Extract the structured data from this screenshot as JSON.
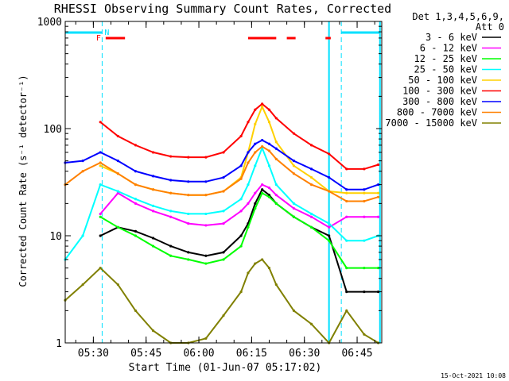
{
  "chart_data": {
    "type": "line",
    "title": "RHESSI Observing Summary Count Rates, Corrected",
    "xlabel": "Start Time (01-Jun-07 05:17:02)",
    "ylabel": "Corrected Count Rate (s⁻¹ detector⁻¹)",
    "yscale": "log",
    "ylim": [
      1,
      1000
    ],
    "xlim_minutes": [
      5.0,
      95.0
    ],
    "x_unit": "minutes after 05:17:02",
    "x_ticks": [
      {
        "label": "05:30",
        "minute": 13
      },
      {
        "label": "05:45",
        "minute": 28
      },
      {
        "label": "06:00",
        "minute": 43
      },
      {
        "label": "06:15",
        "minute": 58
      },
      {
        "label": "06:30",
        "minute": 73
      },
      {
        "label": "06:45",
        "minute": 88
      }
    ],
    "y_ticks": [
      {
        "label": "1",
        "value": 1
      },
      {
        "label": "10",
        "value": 10
      },
      {
        "label": "100",
        "value": 100
      },
      {
        "label": "1000",
        "value": 1000
      }
    ],
    "legend_header": [
      "Det 1,3,4,5,6,9,",
      "Att 0"
    ],
    "legend_position": "right",
    "timestamp": "15-Oct-2021 10:08",
    "flags": [
      {
        "label": "N",
        "color": "#00e0ff"
      },
      {
        "label": "F",
        "color": "#ff0000"
      }
    ],
    "night_boundaries_minutes": [
      15.5,
      83.5
    ],
    "saa_boundaries_minutes": [
      80.0,
      94.5
    ],
    "night_bar_segments": [
      [
        5.0,
        15.5
      ],
      [
        83.5,
        94.5
      ]
    ],
    "flare_bar_segments": [
      [
        16.5,
        22.0
      ],
      [
        57.0,
        65.0
      ],
      [
        68.0,
        70.5
      ],
      [
        79.0,
        80.5
      ]
    ],
    "x": [
      5,
      10,
      15,
      20,
      25,
      30,
      35,
      40,
      45,
      50,
      55,
      57,
      59,
      61,
      63,
      65,
      70,
      75,
      80,
      85,
      90,
      94
    ],
    "series": [
      {
        "name": "3 - 6 keV",
        "color": "#000000",
        "values": [
          null,
          null,
          10,
          12,
          11,
          9.5,
          8.0,
          7.0,
          6.5,
          7.0,
          10,
          13,
          20,
          27,
          24,
          20,
          15,
          12,
          10,
          3.0,
          3.0,
          3.0
        ]
      },
      {
        "name": "6 - 12 keV",
        "color": "#ff00ff",
        "values": [
          null,
          null,
          16,
          25,
          20,
          17,
          15,
          13,
          12.5,
          13,
          17,
          20,
          25,
          30,
          28,
          24,
          18,
          15,
          12,
          15,
          15,
          15
        ]
      },
      {
        "name": "12 - 25 keV",
        "color": "#00ff00",
        "values": [
          null,
          null,
          15,
          12,
          10,
          8,
          6.5,
          6.0,
          5.5,
          6,
          8,
          12,
          18,
          25,
          23,
          20,
          15,
          12,
          9,
          5,
          5,
          5
        ]
      },
      {
        "name": "25 - 50 keV",
        "color": "#00ffff",
        "values": [
          6,
          10,
          30,
          26,
          22,
          19,
          17,
          16.0,
          16,
          17,
          22,
          30,
          45,
          66,
          45,
          30,
          20,
          16,
          13,
          9,
          9,
          10
        ]
      },
      {
        "name": "50 - 100 keV",
        "color": "#ffd000",
        "values": [
          null,
          null,
          45,
          38,
          30,
          27,
          25,
          24,
          24,
          26,
          35,
          60,
          110,
          160,
          115,
          75,
          45,
          35,
          26,
          25,
          25,
          25
        ]
      },
      {
        "name": "100 - 300 keV",
        "color": "#ff0000",
        "values": [
          null,
          null,
          115,
          85,
          70,
          60,
          55,
          54,
          54,
          60,
          85,
          115,
          150,
          170,
          150,
          125,
          90,
          70,
          58,
          42,
          42,
          46
        ]
      },
      {
        "name": "300 - 800 keV",
        "color": "#0000ff",
        "values": [
          48,
          50,
          60,
          50,
          40,
          36,
          33,
          32,
          32,
          35,
          45,
          60,
          72,
          78,
          72,
          65,
          50,
          42,
          35,
          27,
          27,
          30
        ]
      },
      {
        "name": "800 - 7000 keV",
        "color": "#ff8000",
        "values": [
          30,
          40,
          48,
          38,
          30,
          27,
          25,
          24,
          24,
          26,
          34,
          48,
          60,
          68,
          62,
          52,
          38,
          30,
          26,
          21,
          21,
          23
        ]
      },
      {
        "name": "7000 - 15000 keV",
        "color": "#808000",
        "values": [
          2.5,
          3.5,
          5.0,
          3.5,
          2.0,
          1.3,
          1.0,
          1.0,
          1.1,
          1.8,
          3.0,
          4.5,
          5.5,
          6.0,
          5.0,
          3.5,
          2.0,
          1.5,
          1.0,
          2.0,
          1.2,
          1.0
        ]
      }
    ]
  }
}
